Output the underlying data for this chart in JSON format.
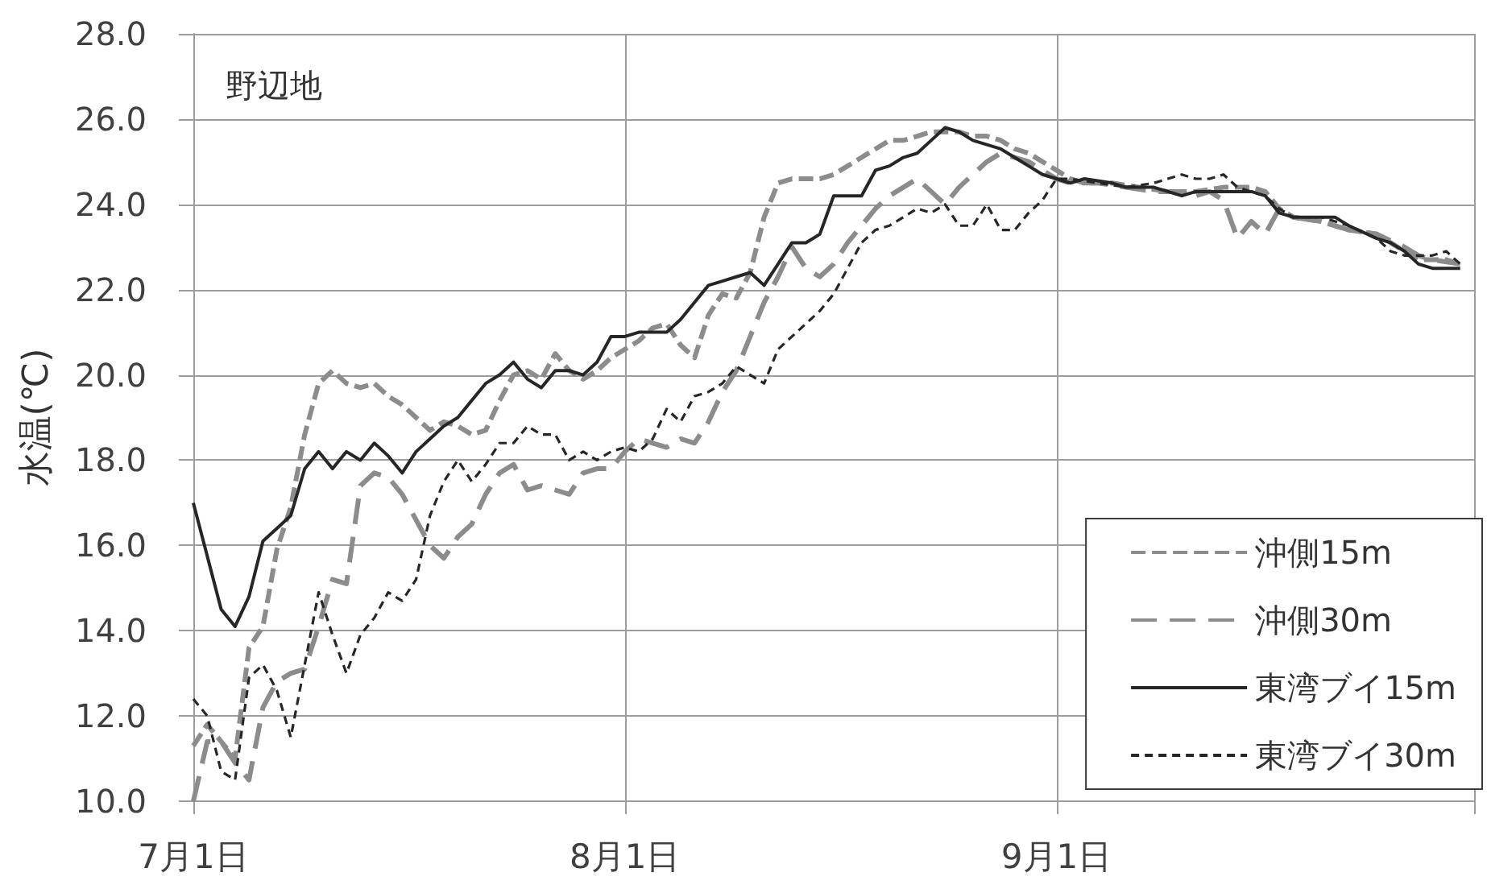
{
  "chart_data": {
    "type": "line",
    "ylabel": "水温(℃)",
    "annotations": [
      "野辺地"
    ],
    "xlim": [
      "--07-01",
      "--10-01"
    ],
    "xticks": [
      {
        "value": "--07-01",
        "label": "7月1日"
      },
      {
        "value": "--08-01",
        "label": "8月1日"
      },
      {
        "value": "--09-01",
        "label": "9月1日"
      },
      {
        "value": "--10-01",
        "label": null
      }
    ],
    "ylim": [
      10,
      28
    ],
    "yticks": [
      {
        "value": 10,
        "label": "10.0"
      },
      {
        "value": 12,
        "label": "12.0"
      },
      {
        "value": 14,
        "label": "14.0"
      },
      {
        "value": 16,
        "label": "16.0"
      },
      {
        "value": 18,
        "label": "18.0"
      },
      {
        "value": 20,
        "label": "20.0"
      },
      {
        "value": 22,
        "label": "22.0"
      },
      {
        "value": 24,
        "label": "24.0"
      },
      {
        "value": 26,
        "label": "26.0"
      },
      {
        "value": 28,
        "label": "28.0"
      }
    ],
    "grid": true,
    "legend": "bottom right",
    "marker": "none",
    "series": [
      {
        "name": "沖側15m",
        "color": "#8c8c8c",
        "line_style": "dashed",
        "x": [
          "--07-01",
          "--07-02",
          "--07-03",
          "--07-04",
          "--07-05",
          "--07-06",
          "--07-07",
          "--07-08",
          "--07-09",
          "--07-10",
          "--07-11",
          "--07-12",
          "--07-13",
          "--07-14",
          "--07-15",
          "--07-16",
          "--07-17",
          "--07-18",
          "--07-19",
          "--07-20",
          "--07-21",
          "--07-22",
          "--07-23",
          "--07-24",
          "--07-25",
          "--07-26",
          "--07-27",
          "--07-28",
          "--07-29",
          "--07-30",
          "--07-31",
          "--08-01",
          "--08-02",
          "--08-03",
          "--08-04",
          "--08-05",
          "--08-06",
          "--08-07",
          "--08-08",
          "--08-09",
          "--08-10",
          "--08-11",
          "--08-12",
          "--08-13",
          "--08-14",
          "--08-15",
          "--08-16",
          "--08-17",
          "--08-18",
          "--08-19",
          "--08-20",
          "--08-21",
          "--08-22",
          "--08-23",
          "--08-24",
          "--08-25",
          "--08-26",
          "--08-27",
          "--08-28",
          "--08-29",
          "--08-30",
          "--08-31",
          "--09-01",
          "--09-02",
          "--09-03",
          "--09-05",
          "--09-07",
          "--09-09",
          "--09-11",
          "--09-13",
          "--09-15",
          "--09-16",
          "--09-17",
          "--09-18",
          "--09-20",
          "--09-22",
          "--09-24",
          "--09-25",
          "--09-26",
          "--09-27",
          "--09-29",
          "--09-30"
        ],
        "values": [
          11.3,
          11.8,
          11.4,
          11.0,
          13.6,
          14.1,
          15.9,
          16.9,
          18.6,
          19.8,
          20.1,
          19.8,
          19.7,
          19.8,
          19.5,
          19.3,
          19.0,
          18.7,
          18.9,
          18.8,
          18.6,
          18.7,
          19.4,
          20.0,
          20.1,
          19.9,
          20.5,
          20.1,
          19.9,
          20.1,
          20.4,
          20.6,
          20.8,
          21.1,
          21.2,
          20.7,
          20.4,
          21.4,
          21.9,
          21.8,
          22.4,
          23.7,
          24.5,
          24.6,
          24.6,
          24.6,
          24.7,
          24.9,
          25.1,
          25.3,
          25.5,
          25.5,
          25.6,
          25.7,
          25.7,
          25.7,
          25.6,
          25.6,
          25.5,
          25.3,
          25.2,
          25.0,
          24.8,
          24.6,
          24.5,
          24.5,
          24.4,
          24.3,
          24.3,
          24.4,
          24.4,
          24.3,
          23.9,
          23.7,
          23.6,
          23.4,
          23.3,
          23.1,
          22.9,
          22.7,
          22.7,
          22.6
        ]
      },
      {
        "name": "沖側30m",
        "color": "#8c8c8c",
        "line_style": "dashed",
        "x": [
          "--07-01",
          "--07-02",
          "--07-03",
          "--07-04",
          "--07-05",
          "--07-06",
          "--07-07",
          "--07-08",
          "--07-09",
          "--07-10",
          "--07-11",
          "--07-12",
          "--07-13",
          "--07-14",
          "--07-15",
          "--07-16",
          "--07-17",
          "--07-18",
          "--07-19",
          "--07-20",
          "--07-21",
          "--07-22",
          "--07-23",
          "--07-24",
          "--07-25",
          "--07-26",
          "--07-27",
          "--07-28",
          "--07-29",
          "--07-30",
          "--07-31",
          "--08-01",
          "--08-02",
          "--08-03",
          "--08-04",
          "--08-05",
          "--08-06",
          "--08-07",
          "--08-08",
          "--08-09",
          "--08-10",
          "--08-11",
          "--08-12",
          "--08-13",
          "--08-14",
          "--08-15",
          "--08-16",
          "--08-17",
          "--08-18",
          "--08-19",
          "--08-20",
          "--08-21",
          "--08-22",
          "--08-23",
          "--08-24",
          "--08-25",
          "--08-26",
          "--08-27",
          "--08-28",
          "--08-29",
          "--08-30",
          "--08-31",
          "--09-01",
          "--09-02",
          "--09-04",
          "--09-06",
          "--09-08",
          "--09-10",
          "--09-11",
          "--09-12",
          "--09-13",
          "--09-14",
          "--09-15",
          "--09-16",
          "--09-17",
          "--09-18",
          "--09-20",
          "--09-22",
          "--09-24",
          "--09-26",
          "--09-27",
          "--09-28",
          "--09-30"
        ],
        "values": [
          10.0,
          11.4,
          11.4,
          10.9,
          10.5,
          12.2,
          12.8,
          13.0,
          13.1,
          14.1,
          15.2,
          15.1,
          17.4,
          17.7,
          17.6,
          17.2,
          16.6,
          16.0,
          15.7,
          16.2,
          16.5,
          17.2,
          17.7,
          17.9,
          17.3,
          17.4,
          17.3,
          17.2,
          17.7,
          17.8,
          17.8,
          18.2,
          18.5,
          18.4,
          18.3,
          18.5,
          18.4,
          18.9,
          19.6,
          20.1,
          20.9,
          21.7,
          22.3,
          23.0,
          22.5,
          22.3,
          22.6,
          23.1,
          23.5,
          23.9,
          24.2,
          24.4,
          24.6,
          24.3,
          24.0,
          24.4,
          24.7,
          25.0,
          25.2,
          25.1,
          25.0,
          24.8,
          24.6,
          24.5,
          24.5,
          24.4,
          24.3,
          24.3,
          24.2,
          24.3,
          24.1,
          23.2,
          23.6,
          23.3,
          23.9,
          23.7,
          23.6,
          23.4,
          23.3,
          23.0,
          22.8,
          22.7,
          22.6
        ]
      },
      {
        "name": "東湾ブイ15m",
        "color": "#262626",
        "line_style": "solid",
        "x": [
          "--07-01",
          "--07-03",
          "--07-04",
          "--07-05",
          "--07-06",
          "--07-07",
          "--07-08",
          "--07-09",
          "--07-10",
          "--07-11",
          "--07-12",
          "--07-13",
          "--07-14",
          "--07-15",
          "--07-16",
          "--07-17",
          "--07-18",
          "--07-19",
          "--07-20",
          "--07-21",
          "--07-22",
          "--07-23",
          "--07-24",
          "--07-25",
          "--07-26",
          "--07-27",
          "--07-28",
          "--07-29",
          "--07-30",
          "--07-31",
          "--08-01",
          "--08-02",
          "--08-03",
          "--08-04",
          "--08-05",
          "--08-06",
          "--08-07",
          "--08-08",
          "--08-09",
          "--08-10",
          "--08-11",
          "--08-12",
          "--08-13",
          "--08-14",
          "--08-15",
          "--08-16",
          "--08-17",
          "--08-18",
          "--08-19",
          "--08-20",
          "--08-21",
          "--08-22",
          "--08-23",
          "--08-24",
          "--08-25",
          "--08-26",
          "--08-27",
          "--08-28",
          "--08-29",
          "--08-30",
          "--08-31",
          "--09-01",
          "--09-02",
          "--09-03",
          "--09-05",
          "--09-06",
          "--09-08",
          "--09-10",
          "--09-11",
          "--09-13",
          "--09-15",
          "--09-16",
          "--09-17",
          "--09-18",
          "--09-20",
          "--09-21",
          "--09-22",
          "--09-24",
          "--09-25",
          "--09-26",
          "--09-27",
          "--09-28",
          "--09-30"
        ],
        "values": [
          17.0,
          14.5,
          14.1,
          14.8,
          16.1,
          16.4,
          16.7,
          17.8,
          18.2,
          17.8,
          18.2,
          18.0,
          18.4,
          18.1,
          17.7,
          18.2,
          18.5,
          18.8,
          19.0,
          19.4,
          19.8,
          20.0,
          20.3,
          19.9,
          19.7,
          20.1,
          20.1,
          20.0,
          20.3,
          20.9,
          20.9,
          21.0,
          21.0,
          21.0,
          21.3,
          21.7,
          22.1,
          22.2,
          22.3,
          22.4,
          22.1,
          22.6,
          23.1,
          23.1,
          23.3,
          24.2,
          24.2,
          24.2,
          24.8,
          24.9,
          25.1,
          25.2,
          25.5,
          25.8,
          25.7,
          25.5,
          25.4,
          25.3,
          25.1,
          24.9,
          24.7,
          24.6,
          24.5,
          24.6,
          24.5,
          24.4,
          24.4,
          24.2,
          24.3,
          24.3,
          24.3,
          24.2,
          23.8,
          23.7,
          23.7,
          23.7,
          23.5,
          23.2,
          23.1,
          22.9,
          22.6,
          22.5,
          22.5
        ]
      },
      {
        "name": "東湾ブイ30m",
        "color": "#262626",
        "line_style": "dashed",
        "x": [
          "--07-01",
          "--07-02",
          "--07-03",
          "--07-04",
          "--07-05",
          "--07-06",
          "--07-07",
          "--07-08",
          "--07-09",
          "--07-10",
          "--07-11",
          "--07-12",
          "--07-13",
          "--07-14",
          "--07-15",
          "--07-16",
          "--07-17",
          "--07-18",
          "--07-19",
          "--07-20",
          "--07-21",
          "--07-22",
          "--07-23",
          "--07-24",
          "--07-25",
          "--07-26",
          "--07-27",
          "--07-28",
          "--07-29",
          "--07-30",
          "--07-31",
          "--08-01",
          "--08-02",
          "--08-03",
          "--08-04",
          "--08-05",
          "--08-06",
          "--08-07",
          "--08-08",
          "--08-09",
          "--08-10",
          "--08-11",
          "--08-12",
          "--08-13",
          "--08-14",
          "--08-15",
          "--08-16",
          "--08-17",
          "--08-18",
          "--08-19",
          "--08-20",
          "--08-21",
          "--08-22",
          "--08-23",
          "--08-24",
          "--08-25",
          "--08-26",
          "--08-27",
          "--08-28",
          "--08-29",
          "--08-30",
          "--08-31",
          "--09-01",
          "--09-02",
          "--09-04",
          "--09-06",
          "--09-08",
          "--09-09",
          "--09-10",
          "--09-11",
          "--09-12",
          "--09-13",
          "--09-14",
          "--09-15",
          "--09-16",
          "--09-17",
          "--09-18",
          "--09-20",
          "--09-22",
          "--09-24",
          "--09-25",
          "--09-26",
          "--09-27",
          "--09-28",
          "--09-29",
          "--09-30"
        ],
        "values": [
          12.4,
          12.0,
          10.7,
          10.5,
          12.9,
          13.2,
          12.6,
          11.5,
          13.2,
          14.9,
          13.9,
          13.0,
          13.9,
          14.3,
          14.9,
          14.7,
          15.2,
          16.7,
          17.5,
          18.0,
          17.5,
          17.9,
          18.4,
          18.4,
          18.8,
          18.6,
          18.6,
          18.0,
          18.2,
          18.0,
          18.2,
          18.3,
          18.2,
          18.5,
          19.2,
          18.9,
          19.5,
          19.6,
          19.8,
          20.2,
          20.0,
          19.8,
          20.6,
          20.9,
          21.2,
          21.5,
          21.9,
          22.5,
          23.1,
          23.4,
          23.5,
          23.7,
          23.9,
          23.8,
          24.0,
          23.5,
          23.5,
          24.0,
          23.4,
          23.4,
          23.8,
          24.1,
          24.6,
          24.6,
          24.5,
          24.4,
          24.5,
          24.6,
          24.7,
          24.6,
          24.6,
          24.7,
          24.4,
          24.3,
          24.2,
          23.9,
          23.7,
          23.7,
          23.5,
          23.2,
          22.9,
          22.8,
          22.8,
          22.8,
          22.9,
          22.6
        ]
      }
    ]
  }
}
